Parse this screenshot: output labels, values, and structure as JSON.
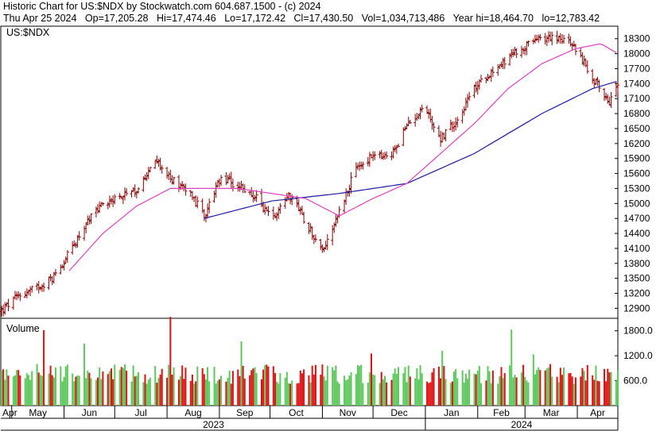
{
  "header": {
    "line1": "Historic Chart for US:$NDX by Stockwatch.com 604.687.1500 - (c) 2024",
    "line2": {
      "date": "Thu Apr 25 2024",
      "open": "Op=17,205.28",
      "high": "Hi=17,474.46",
      "low": "Lo=17,172.42",
      "close": "Cl=17,430.50",
      "volume": "Vol=1,034,713,486",
      "year_high": "Year hi=18,464.70",
      "year_low": "lo=12,783.42"
    }
  },
  "colors": {
    "price_bar": "#8b0000",
    "ma_short": "#e040c0",
    "ma_long": "#1a1aa0",
    "vol_up": "#5cc85c",
    "vol_down": "#e01010"
  },
  "chart_data": [
    {
      "type": "bar",
      "title": "US:$NDX",
      "ylim": [
        12700,
        18550
      ],
      "y_ticks": [
        "18300",
        "18000",
        "17700",
        "17400",
        "17100",
        "16800",
        "16500",
        "16200",
        "15900",
        "15600",
        "15300",
        "15000",
        "14700",
        "14400",
        "14100",
        "13800",
        "13500",
        "13200",
        "12900"
      ],
      "legend": [],
      "series": [
        {
          "name": "price",
          "x_days": [
            0,
            10,
            20,
            30,
            40,
            50,
            60,
            70,
            80,
            90,
            100,
            110,
            120,
            130,
            140,
            150,
            160,
            170,
            180,
            190,
            200,
            210,
            220,
            230,
            240,
            250,
            260,
            270,
            280,
            290,
            300,
            310,
            320,
            330,
            340,
            350,
            360,
            365
          ],
          "close": [
            12850,
            13150,
            13300,
            13500,
            14000,
            14600,
            15000,
            15150,
            15200,
            15900,
            15500,
            15300,
            14750,
            15500,
            15350,
            15150,
            14700,
            15200,
            14650,
            14050,
            14850,
            15700,
            15950,
            15900,
            16550,
            16950,
            16300,
            16700,
            17300,
            17650,
            17900,
            18150,
            18300,
            18350,
            18100,
            17500,
            17050,
            17430
          ]
        },
        {
          "name": "ma_short",
          "x_days": [
            40,
            60,
            80,
            100,
            120,
            140,
            160,
            180,
            200,
            220,
            240,
            260,
            280,
            300,
            320,
            340,
            355,
            365
          ],
          "close": [
            13650,
            14400,
            14950,
            15300,
            15300,
            15300,
            15200,
            15100,
            14750,
            15100,
            15400,
            16000,
            16600,
            17300,
            17800,
            18100,
            18200,
            18000
          ]
        },
        {
          "name": "ma_long",
          "x_days": [
            120,
            160,
            200,
            240,
            280,
            320,
            350,
            365
          ],
          "close": [
            14700,
            15050,
            15200,
            15400,
            16000,
            16800,
            17300,
            17450
          ]
        }
      ]
    },
    {
      "type": "bar",
      "title": "Volume",
      "ylim": [
        0,
        2100
      ],
      "y_ticks": [
        "1800.0",
        "1200.0",
        "600.0"
      ],
      "categories": [
        "Apr",
        "May",
        "Jun",
        "Jul",
        "Aug",
        "Sep",
        "Oct",
        "Nov",
        "Dec",
        "Jan",
        "Feb",
        "Mar",
        "Apr"
      ],
      "years": [
        "2023",
        "2024"
      ]
    }
  ]
}
